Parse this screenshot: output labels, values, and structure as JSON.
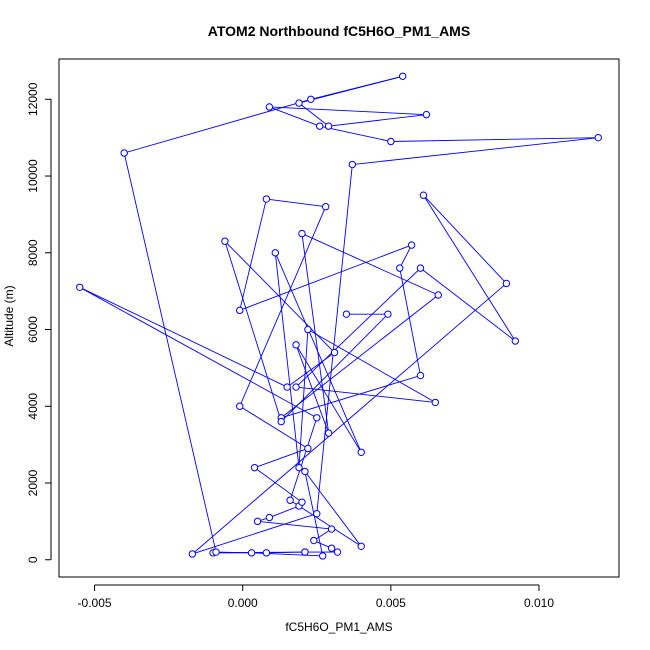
{
  "chart_data": {
    "type": "line",
    "title": "ATOM2 Northbound fC5H6O_PM1_AMS",
    "xlabel": "fC5H6O_PM1_AMS",
    "ylabel": "Altitude (m)",
    "xlim": [
      -0.0062,
      0.0127
    ],
    "ylim": [
      -450,
      13050
    ],
    "x_ticks": [
      -0.005,
      0.0,
      0.005,
      0.01
    ],
    "x_tick_labels": [
      "-0.005",
      "0.000",
      "0.005",
      "0.010"
    ],
    "y_ticks": [
      0,
      2000,
      4000,
      6000,
      8000,
      10000,
      12000
    ],
    "y_tick_labels": [
      "0",
      "2000",
      "4000",
      "6000",
      "8000",
      "10000",
      "12000"
    ],
    "line_color": "#0000ff",
    "marker": "open-circle",
    "series": [
      {
        "x": [
          0.0021,
          -0.001,
          0.0008,
          0.0021,
          0.0032,
          0.003,
          0.0024,
          0.003,
          0.0005,
          0.0009,
          0.0019,
          0.002,
          0.0004,
          0.0022,
          -0.0001,
          0.0028,
          0.0008,
          -0.0001,
          0.0057,
          0.0053,
          0.006,
          0.0013,
          0.0066,
          0.002,
          0.0029,
          0.0018,
          0.004,
          0.0011,
          0.0019,
          0.0022,
          0.0065,
          0.0018,
          0.006,
          0.0092,
          0.0061,
          0.0089,
          -0.0017,
          0.0025,
          0.0037,
          0.012,
          0.005,
          0.0026,
          0.0009,
          0.0062,
          0.0029,
          0.0019,
          0.0054,
          0.0023,
          -0.004,
          -0.0009,
          0.0003,
          0.0027,
          0.0021,
          0.004,
          0.0016,
          0.0025,
          -0.0055,
          0.0015,
          0.0031,
          -0.0006,
          0.0013,
          0.0049,
          0.0035
        ],
        "y": [
          200,
          180,
          180,
          200,
          200,
          300,
          500,
          800,
          1000,
          1100,
          1400,
          1500,
          2400,
          2900,
          4000,
          9200,
          9400,
          6500,
          8200,
          7600,
          4800,
          3700,
          6900,
          8500,
          3300,
          5600,
          2800,
          8000,
          2400,
          6000,
          4100,
          4500,
          7600,
          5700,
          9500,
          7200,
          150,
          1200,
          10300,
          11000,
          10900,
          11300,
          11800,
          11600,
          11300,
          11900,
          12600,
          12000,
          10600,
          200,
          180,
          100,
          2300,
          350,
          1550,
          3700,
          7100,
          4500,
          5400,
          8300,
          3600,
          6400,
          6400
        ]
      }
    ]
  }
}
